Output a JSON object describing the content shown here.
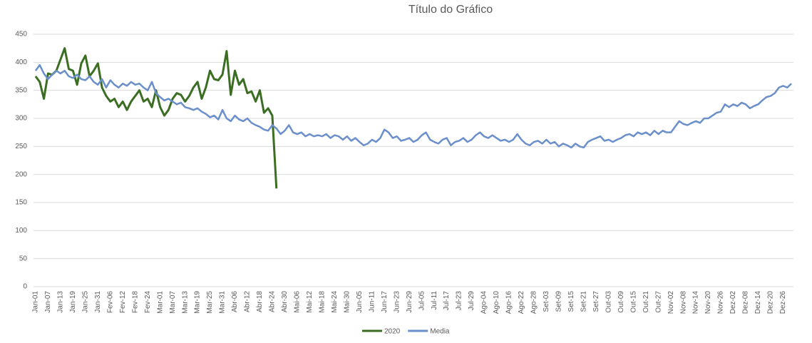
{
  "chart_data": {
    "type": "line",
    "title": "Título do Gráfico",
    "categories": [
      "Jan-01",
      null,
      null,
      "Jan-07",
      null,
      null,
      "Jan-13",
      null,
      null,
      "Jan-19",
      null,
      null,
      "Jan-25",
      null,
      null,
      "Jan-31",
      null,
      null,
      "Fev-06",
      null,
      null,
      "Fev-12",
      null,
      null,
      "Fev-18",
      null,
      null,
      "Fev-24",
      null,
      null,
      "Mar-01",
      null,
      null,
      "Mar-07",
      null,
      null,
      "Mar-13",
      null,
      null,
      "Mar-19",
      null,
      null,
      "Mar-25",
      null,
      null,
      "Mar-31",
      null,
      null,
      "Abr-06",
      null,
      null,
      "Abr-12",
      null,
      null,
      "Abr-18",
      null,
      null,
      "Abr-24",
      null,
      null,
      "Abr-30",
      null,
      null,
      "Mai-06",
      null,
      null,
      "Mai-12",
      null,
      null,
      "Mai-18",
      null,
      null,
      "Mai-24",
      null,
      null,
      "Mai-30",
      null,
      null,
      "Jun-05",
      null,
      null,
      "Jun-11",
      null,
      null,
      "Jun-17",
      null,
      null,
      "Jun-23",
      null,
      null,
      "Jun-29",
      null,
      null,
      "Jul-05",
      null,
      null,
      "Jul-11",
      null,
      null,
      "Jul-17",
      null,
      null,
      "Jul-23",
      null,
      null,
      "Jul-29",
      null,
      null,
      "Ago-04",
      null,
      null,
      "Ago-10",
      null,
      null,
      "Ago-16",
      null,
      null,
      "Ago-22",
      null,
      null,
      "Ago-28",
      null,
      null,
      "Set-03",
      null,
      null,
      "Set-09",
      null,
      null,
      "Set-15",
      null,
      null,
      "Set-21",
      null,
      null,
      "Set-27",
      null,
      null,
      "Out-03",
      null,
      null,
      "Out-09",
      null,
      null,
      "Out-15",
      null,
      null,
      "Out-21",
      null,
      null,
      "Out-27",
      null,
      null,
      "Nov-02",
      null,
      null,
      "Nov-08",
      null,
      null,
      "Nov-14",
      null,
      null,
      "Nov-20",
      null,
      null,
      "Nov-26",
      null,
      null,
      "Dez-02",
      null,
      null,
      "Dez-08",
      null,
      null,
      "Dez-14",
      null,
      null,
      "Dez-20",
      null,
      null,
      "Dez-26",
      null,
      null
    ],
    "series": [
      {
        "name": "2020",
        "color": "#3b6e22",
        "values": [
          375,
          365,
          335,
          380,
          378,
          385,
          405,
          425,
          388,
          385,
          360,
          398,
          412,
          375,
          385,
          398,
          355,
          340,
          330,
          335,
          320,
          330,
          315,
          330,
          340,
          350,
          330,
          335,
          320,
          350,
          320,
          305,
          315,
          335,
          345,
          342,
          330,
          340,
          355,
          365,
          335,
          355,
          385,
          370,
          368,
          378,
          420,
          342,
          385,
          360,
          370,
          345,
          348,
          330,
          350,
          310,
          318,
          305,
          175,
          null,
          null,
          null,
          null,
          null,
          null,
          null,
          null,
          null,
          null,
          null,
          null,
          null,
          null,
          null,
          null,
          null,
          null,
          null,
          null,
          null,
          null,
          null,
          null,
          null,
          null,
          null,
          null,
          null,
          null,
          null,
          null,
          null,
          null,
          null,
          null,
          null,
          null,
          null,
          null,
          null,
          null,
          null,
          null,
          null,
          null,
          null,
          null,
          null,
          null,
          null,
          null,
          null,
          null,
          null,
          null,
          null,
          null,
          null,
          null,
          null,
          null,
          null,
          null,
          null,
          null,
          null,
          null,
          null,
          null,
          null,
          null,
          null,
          null,
          null,
          null,
          null,
          null,
          null,
          null,
          null,
          null,
          null,
          null,
          null,
          null,
          null,
          null,
          null,
          null,
          null,
          null,
          null,
          null,
          null,
          null,
          null,
          null,
          null,
          null,
          null,
          null,
          null,
          null,
          null,
          null,
          null,
          null,
          null,
          null,
          null,
          null,
          null,
          null,
          null,
          null,
          null,
          null,
          null,
          null,
          null,
          null,
          null,
          null
        ]
      },
      {
        "name": "Media",
        "color": "#6b8fcb",
        "values": [
          385,
          395,
          380,
          370,
          378,
          385,
          380,
          385,
          375,
          372,
          378,
          370,
          368,
          375,
          365,
          360,
          370,
          355,
          368,
          360,
          355,
          362,
          358,
          365,
          360,
          362,
          355,
          350,
          365,
          345,
          338,
          332,
          335,
          330,
          325,
          328,
          320,
          318,
          315,
          318,
          312,
          308,
          302,
          305,
          298,
          315,
          300,
          295,
          305,
          298,
          295,
          300,
          292,
          288,
          285,
          280,
          278,
          288,
          282,
          272,
          278,
          288,
          275,
          272,
          275,
          268,
          272,
          268,
          270,
          268,
          272,
          265,
          270,
          268,
          262,
          268,
          260,
          265,
          258,
          252,
          255,
          262,
          258,
          265,
          280,
          275,
          265,
          268,
          260,
          262,
          265,
          258,
          262,
          270,
          275,
          262,
          258,
          255,
          262,
          265,
          252,
          258,
          260,
          265,
          258,
          262,
          270,
          275,
          268,
          265,
          270,
          265,
          260,
          262,
          258,
          262,
          272,
          262,
          255,
          252,
          258,
          260,
          255,
          262,
          255,
          258,
          250,
          255,
          252,
          248,
          255,
          250,
          248,
          258,
          262,
          265,
          268,
          260,
          262,
          258,
          262,
          265,
          270,
          272,
          268,
          275,
          272,
          275,
          270,
          278,
          272,
          278,
          275,
          275,
          285,
          295,
          290,
          288,
          292,
          295,
          292,
          300,
          300,
          305,
          310,
          312,
          325,
          320,
          325,
          322,
          328,
          325,
          318,
          322,
          325,
          332,
          338,
          340,
          345,
          355,
          358,
          355,
          362
        ]
      }
    ],
    "ylim": [
      0,
      450
    ],
    "yticks": [
      0,
      50,
      100,
      150,
      200,
      250,
      300,
      350,
      400,
      450
    ],
    "grid": true,
    "legend": "bottom"
  }
}
